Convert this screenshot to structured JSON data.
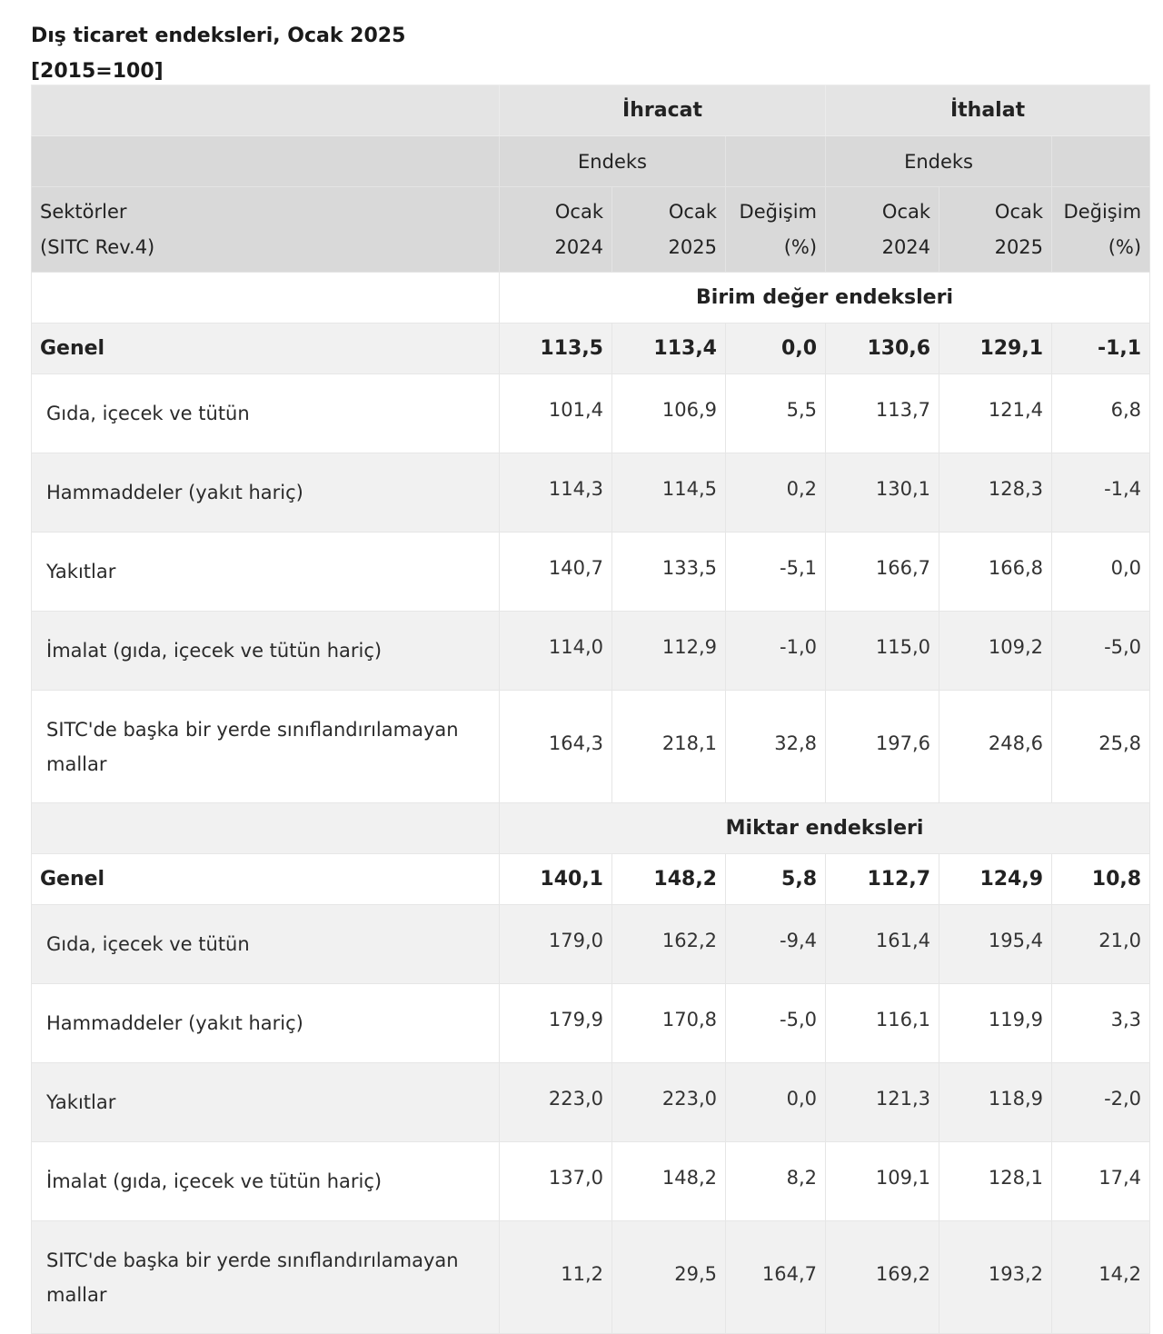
{
  "caption": {
    "title": "Dış ticaret endeksleri, Ocak 2025",
    "base": "[2015=100]"
  },
  "header": {
    "groups": [
      "İhracat",
      "İthalat"
    ],
    "subgroup": "Endeks",
    "sector_label_1": "Sektörler",
    "sector_label_2": "(SITC Rev.4)",
    "cols": [
      {
        "line1": "Ocak",
        "line2": "2024"
      },
      {
        "line1": "Ocak",
        "line2": "2025"
      },
      {
        "line1": "Değişim",
        "line2": "(%)"
      },
      {
        "line1": "Ocak",
        "line2": "2024"
      },
      {
        "line1": "Ocak",
        "line2": "2025"
      },
      {
        "line1": "Değişim",
        "line2": "(%)"
      }
    ]
  },
  "sections": [
    {
      "title": "Birim değer endeksleri",
      "genel": {
        "label": "Genel",
        "values": [
          "113,5",
          "113,4",
          "0,0",
          "130,6",
          "129,1",
          "-1,1"
        ]
      },
      "rows": [
        {
          "label": "Gıda, içecek ve tütün",
          "values": [
            "101,4",
            "106,9",
            "5,5",
            "113,7",
            "121,4",
            "6,8"
          ]
        },
        {
          "label": "Hammaddeler (yakıt hariç)",
          "values": [
            "114,3",
            "114,5",
            "0,2",
            "130,1",
            "128,3",
            "-1,4"
          ]
        },
        {
          "label": "Yakıtlar",
          "values": [
            "140,7",
            "133,5",
            "-5,1",
            "166,7",
            "166,8",
            "0,0"
          ]
        },
        {
          "label": "İmalat (gıda, içecek ve tütün hariç)",
          "values": [
            "114,0",
            "112,9",
            "-1,0",
            "115,0",
            "109,2",
            "-5,0"
          ]
        },
        {
          "label": "SITC'de başka bir yerde sınıflandırılamayan mallar",
          "values": [
            "164,3",
            "218,1",
            "32,8",
            "197,6",
            "248,6",
            "25,8"
          ]
        }
      ]
    },
    {
      "title": "Miktar endeksleri",
      "genel": {
        "label": "Genel",
        "values": [
          "140,1",
          "148,2",
          "5,8",
          "112,7",
          "124,9",
          "10,8"
        ]
      },
      "rows": [
        {
          "label": "Gıda, içecek ve tütün",
          "values": [
            "179,0",
            "162,2",
            "-9,4",
            "161,4",
            "195,4",
            "21,0"
          ]
        },
        {
          "label": "Hammaddeler (yakıt hariç)",
          "values": [
            "179,9",
            "170,8",
            "-5,0",
            "116,1",
            "119,9",
            "3,3"
          ]
        },
        {
          "label": "Yakıtlar",
          "values": [
            "223,0",
            "223,0",
            "0,0",
            "121,3",
            "118,9",
            "-2,0"
          ]
        },
        {
          "label": "İmalat (gıda, içecek ve tütün hariç)",
          "values": [
            "137,0",
            "148,2",
            "8,2",
            "109,1",
            "128,1",
            "17,4"
          ]
        },
        {
          "label": "SITC'de başka bir yerde sınıflandırılamayan mallar",
          "values": [
            "11,2",
            "29,5",
            "164,7",
            "169,2",
            "193,2",
            "14,2"
          ]
        }
      ]
    }
  ],
  "colors": {
    "header_top": "#e4e4e4",
    "header_sub": "#d9d9d9",
    "row_alt": "#f1f1f1",
    "row": "#ffffff",
    "border": "#e6e6e6"
  }
}
